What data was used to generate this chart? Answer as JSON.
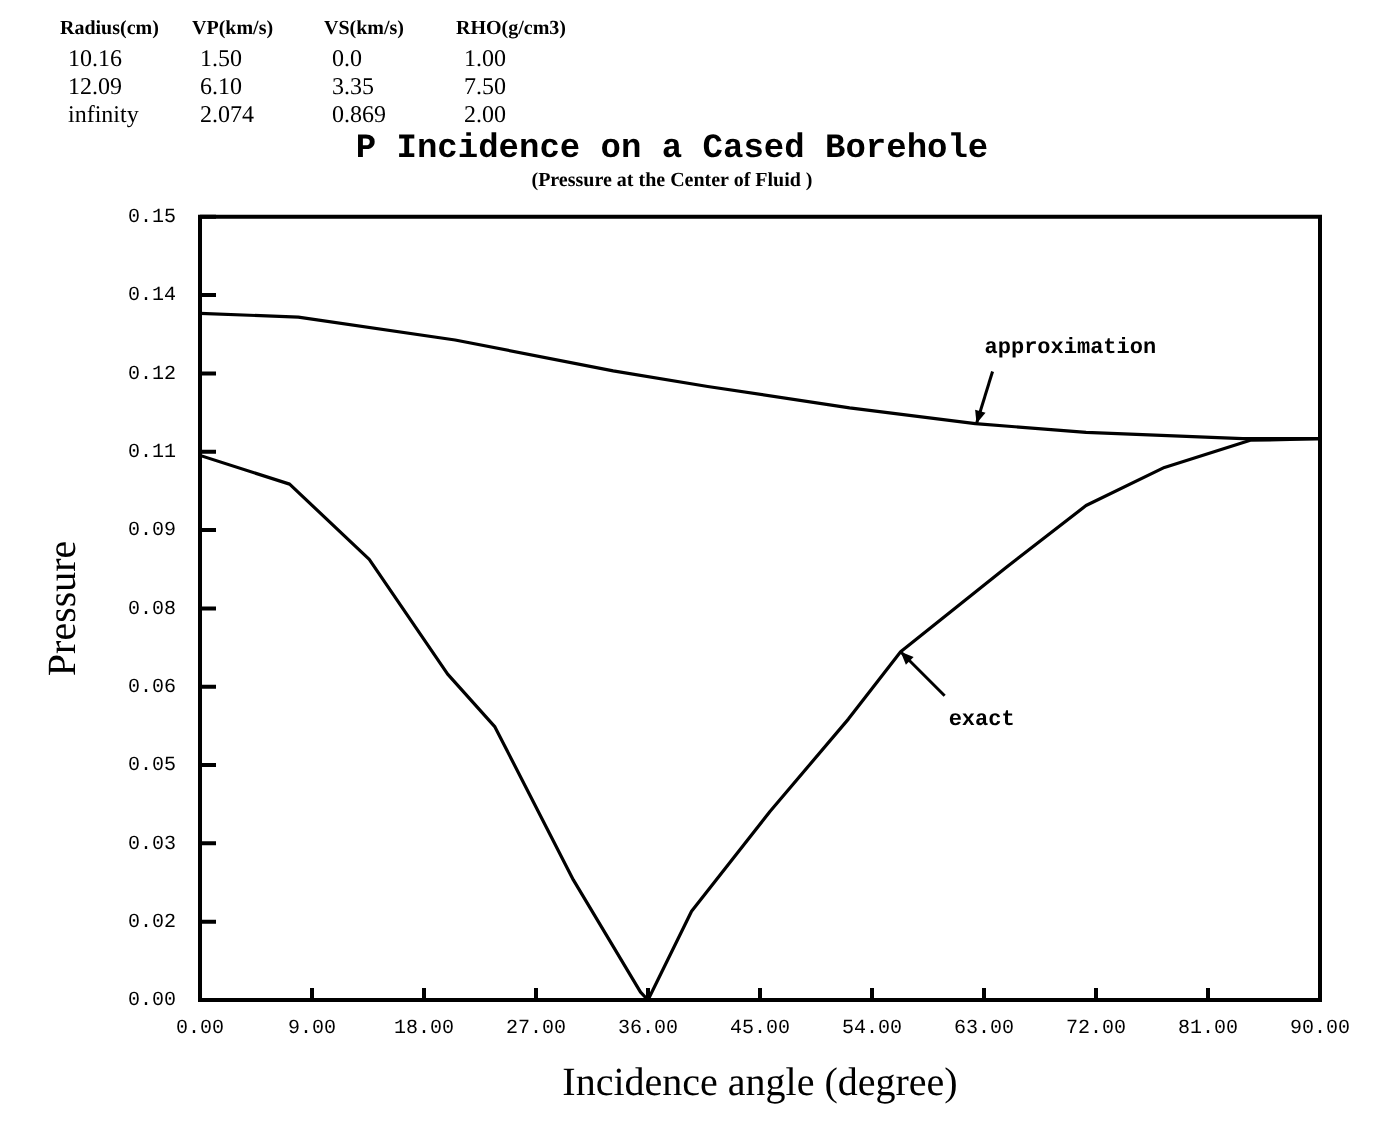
{
  "chart_data": {
    "type": "line",
    "title": "P Incidence on a Cased Borehole",
    "subtitle": "(Pressure at the Center of Fluid )",
    "xlabel": "Incidence angle (degree)",
    "ylabel": "Pressure",
    "annotations": [
      "Radius(cm) VP(km/s) VS(km/s) RHO(g/cm3)",
      "10.16 1.50 0.0 1.00",
      "12.09 6.10 3.35 7.50",
      "infinity 2.074 0.869 2.00",
      {
        "text": "approximation",
        "x": 62.4,
        "y": 0.1104
      },
      {
        "text": "exact",
        "x": 56.3,
        "y": 0.0667
      }
    ],
    "series": [
      {
        "color": "#000000",
        "x": [
          0,
          7.9,
          20.5,
          33.2,
          40.8,
          52.2,
          62.3,
          71.2,
          83.8,
          90
        ],
        "values": [
          0.1315,
          0.1308,
          0.1264,
          0.1205,
          0.1175,
          0.1134,
          0.1104,
          0.1087,
          0.1075,
          0.1075
        ]
      },
      {
        "color": "#000000",
        "x": [
          0,
          7.2,
          13.6,
          19.9,
          23.7,
          30.0,
          35.4,
          36,
          39.5,
          45.8,
          52.1,
          56.3,
          64.8,
          71.2,
          77.5,
          84.4,
          90
        ],
        "values": [
          0.1043,
          0.0988,
          0.0844,
          0.0624,
          0.0523,
          0.023,
          0.0015,
          0.0,
          0.017,
          0.0361,
          0.0538,
          0.0667,
          0.0829,
          0.0947,
          0.102,
          0.1072,
          0.1075
        ]
      }
    ],
    "xlim": [
      0,
      90
    ],
    "xticks": [
      {
        "value": 0,
        "label": "0.00"
      },
      {
        "value": 9,
        "label": "9.00"
      },
      {
        "value": 18,
        "label": "18.00"
      },
      {
        "value": 27,
        "label": "27.00"
      },
      {
        "value": 36,
        "label": "36.00"
      },
      {
        "value": 45,
        "label": "45.00"
      },
      {
        "value": 54,
        "label": "54.00"
      },
      {
        "value": 63,
        "label": "63.00"
      },
      {
        "value": 72,
        "label": "72.00"
      },
      {
        "value": 81,
        "label": "81.00"
      },
      {
        "value": 90,
        "label": "90.00"
      }
    ],
    "ylim": [
      0,
      0.15
    ],
    "yticks": [
      {
        "value": 0,
        "label": "0.00"
      },
      {
        "value": 0.015,
        "label": "0.02"
      },
      {
        "value": 0.03,
        "label": "0.03"
      },
      {
        "value": 0.045,
        "label": "0.05"
      },
      {
        "value": 0.06,
        "label": "0.06"
      },
      {
        "value": 0.075,
        "label": "0.08"
      },
      {
        "value": 0.09,
        "label": "0.09"
      },
      {
        "value": 0.105,
        "label": "0.11"
      },
      {
        "value": 0.12,
        "label": "0.12"
      },
      {
        "value": 0.135,
        "label": "0.14"
      },
      {
        "value": 0.15,
        "label": "0.15"
      }
    ],
    "grid": false,
    "legend": false,
    "marker": "none",
    "line_style": "solid"
  }
}
